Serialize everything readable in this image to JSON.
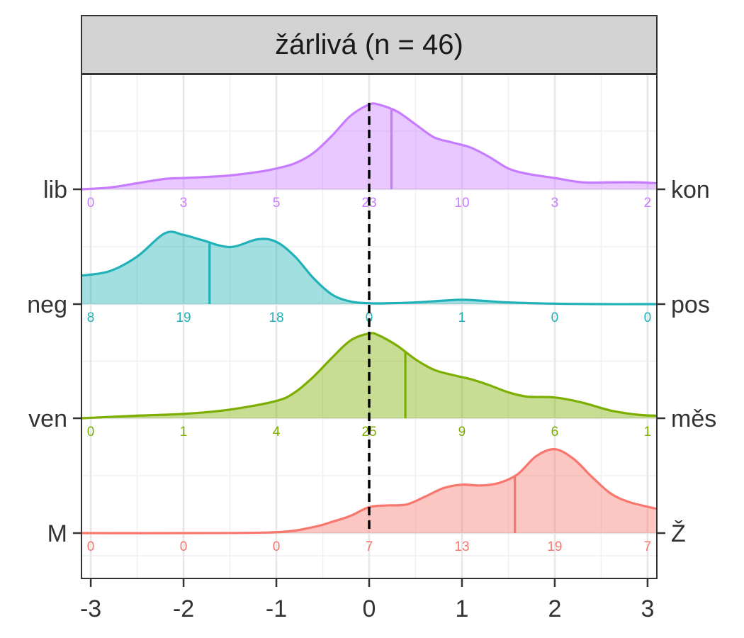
{
  "chart_data": {
    "type": "ridgeline",
    "facet_title": "žárlivá (n = 46)",
    "x_ticks": [
      -3,
      -2,
      -1,
      0,
      1,
      2,
      3
    ],
    "xlim": [
      -3.1,
      3.1
    ],
    "reference_line_x": 0,
    "grid": true,
    "rows": [
      {
        "left_label": "lib",
        "right_label": "kon",
        "color": "#c77cff",
        "mean": 0.24,
        "count_x": [
          -3,
          -2,
          -1,
          0,
          1,
          2,
          3
        ],
        "counts": [
          0,
          3,
          5,
          23,
          10,
          3,
          2
        ],
        "density_x": [
          -3.1,
          -2.8,
          -2.5,
          -2.2,
          -2.0,
          -1.8,
          -1.5,
          -1.2,
          -1.0,
          -0.8,
          -0.6,
          -0.4,
          -0.2,
          0.0,
          0.1,
          0.3,
          0.5,
          0.7,
          0.9,
          1.1,
          1.3,
          1.5,
          1.7,
          2.0,
          2.3,
          2.6,
          2.9,
          3.1
        ],
        "density_y": [
          0.0,
          0.02,
          0.07,
          0.12,
          0.13,
          0.14,
          0.16,
          0.2,
          0.24,
          0.3,
          0.42,
          0.62,
          0.85,
          0.98,
          0.98,
          0.9,
          0.75,
          0.6,
          0.54,
          0.48,
          0.37,
          0.24,
          0.18,
          0.13,
          0.08,
          0.08,
          0.08,
          0.07
        ]
      },
      {
        "left_label": "neg",
        "right_label": "pos",
        "color": "#20b2b8",
        "mean": -1.72,
        "count_x": [
          -3,
          -2,
          -1,
          0,
          1,
          2,
          3
        ],
        "counts": [
          8,
          19,
          18,
          0,
          1,
          0,
          0
        ],
        "density_x": [
          -3.1,
          -2.8,
          -2.5,
          -2.2,
          -2.0,
          -1.8,
          -1.5,
          -1.2,
          -1.0,
          -0.8,
          -0.6,
          -0.4,
          -0.2,
          0.0,
          0.2,
          0.5,
          0.8,
          1.0,
          1.2,
          1.5,
          2.0,
          2.5,
          3.1
        ],
        "density_y": [
          0.33,
          0.38,
          0.55,
          0.82,
          0.8,
          0.74,
          0.66,
          0.75,
          0.72,
          0.55,
          0.3,
          0.11,
          0.03,
          0.01,
          0.01,
          0.02,
          0.04,
          0.05,
          0.04,
          0.02,
          0.005,
          0.0,
          0.0
        ]
      },
      {
        "left_label": "ven",
        "right_label": "měs",
        "color": "#7cae00",
        "mean": 0.39,
        "count_x": [
          -3,
          -2,
          -1,
          0,
          1,
          2,
          3
        ],
        "counts": [
          0,
          1,
          4,
          25,
          9,
          6,
          1
        ],
        "density_x": [
          -3.1,
          -2.5,
          -2.0,
          -1.5,
          -1.0,
          -0.8,
          -0.6,
          -0.4,
          -0.2,
          0.0,
          0.1,
          0.3,
          0.5,
          0.7,
          0.9,
          1.1,
          1.3,
          1.5,
          1.7,
          2.0,
          2.3,
          2.6,
          2.9,
          3.1
        ],
        "density_y": [
          0.0,
          0.03,
          0.05,
          0.1,
          0.2,
          0.3,
          0.48,
          0.7,
          0.9,
          0.98,
          0.96,
          0.84,
          0.68,
          0.56,
          0.5,
          0.45,
          0.38,
          0.3,
          0.25,
          0.24,
          0.18,
          0.09,
          0.04,
          0.03
        ]
      },
      {
        "left_label": "M",
        "right_label": "Ž",
        "color": "#f8766d",
        "mean": 1.57,
        "count_x": [
          -3,
          -2,
          -1,
          0,
          1,
          2,
          3
        ],
        "counts": [
          0,
          0,
          0,
          7,
          13,
          19,
          7
        ],
        "density_x": [
          -3.1,
          -2.0,
          -1.0,
          -0.6,
          -0.4,
          -0.2,
          0.0,
          0.2,
          0.4,
          0.6,
          0.8,
          1.0,
          1.2,
          1.4,
          1.6,
          1.8,
          2.0,
          2.2,
          2.4,
          2.6,
          2.8,
          3.1
        ],
        "density_y": [
          0.0,
          0.0,
          0.01,
          0.07,
          0.13,
          0.2,
          0.3,
          0.32,
          0.33,
          0.42,
          0.52,
          0.56,
          0.55,
          0.58,
          0.68,
          0.89,
          0.97,
          0.86,
          0.65,
          0.46,
          0.36,
          0.28
        ]
      }
    ]
  }
}
